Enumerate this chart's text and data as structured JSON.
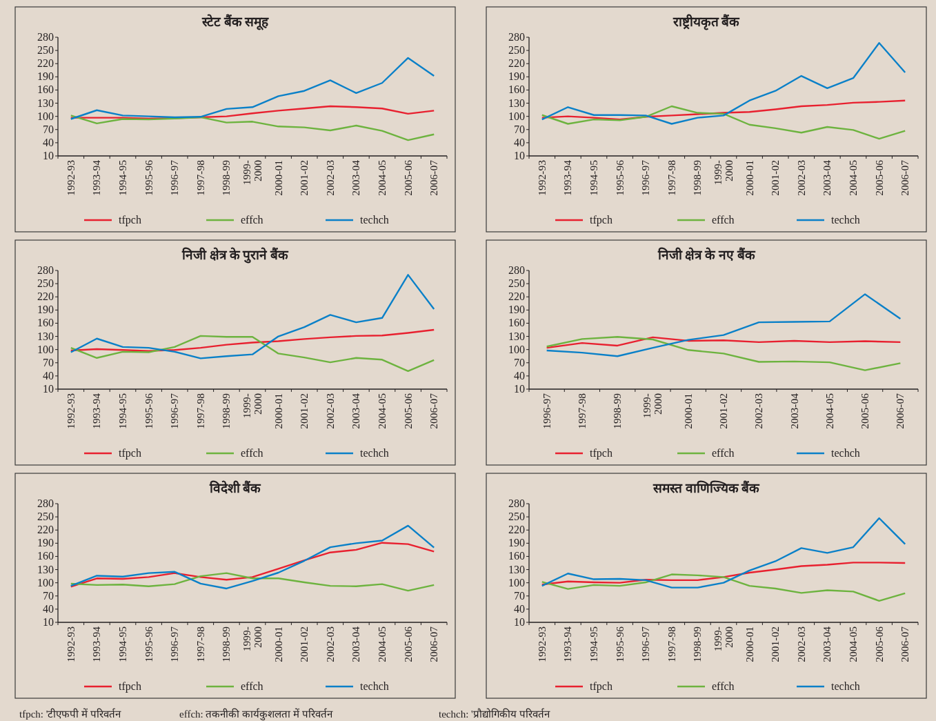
{
  "chart_data": [
    {
      "type": "line",
      "title": "स्टेट बैंक समूह",
      "categories": [
        "1992-93",
        "1993-94",
        "1994-95",
        "1995-96",
        "1996-97",
        "1997-98",
        "1998-99",
        "1999-2000",
        "2000-01",
        "2001-02",
        "2002-03",
        "2003-04",
        "2004-05",
        "2005-06",
        "2006-07"
      ],
      "ylim": [
        10,
        280
      ],
      "yticks": [
        10,
        40,
        70,
        100,
        130,
        160,
        190,
        220,
        250,
        280
      ],
      "legend": "bottom",
      "series": [
        {
          "name": "tfpch",
          "color": "#e8202f",
          "values": [
            97,
            97,
            97,
            95,
            96,
            98,
            100,
            107,
            113,
            118,
            123,
            121,
            118,
            106,
            113
          ]
        },
        {
          "name": "effch",
          "color": "#6db33f",
          "values": [
            102,
            84,
            94,
            93,
            95,
            98,
            86,
            88,
            77,
            75,
            68,
            79,
            67,
            46,
            59
          ]
        },
        {
          "name": "techch",
          "color": "#0a80c8",
          "values": [
            94,
            114,
            102,
            100,
            98,
            99,
            117,
            121,
            146,
            158,
            182,
            153,
            176,
            233,
            192
          ]
        }
      ]
    },
    {
      "type": "line",
      "title": "राष्ट्रीयकृत बैंक",
      "categories": [
        "1992-93",
        "1993-94",
        "1994-95",
        "1995-96",
        "1996-97",
        "1997-98",
        "1998-99",
        "1999-2000",
        "2000-01",
        "2001-02",
        "2002-03",
        "2003-04",
        "2004-05",
        "2005-06",
        "2006-07"
      ],
      "ylim": [
        10,
        280
      ],
      "yticks": [
        10,
        40,
        70,
        100,
        130,
        160,
        190,
        220,
        250,
        280
      ],
      "legend": "bottom",
      "series": [
        {
          "name": "tfpch",
          "color": "#e8202f",
          "values": [
            97,
            100,
            97,
            93,
            99,
            102,
            105,
            108,
            110,
            116,
            123,
            126,
            131,
            133,
            136
          ]
        },
        {
          "name": "effch",
          "color": "#6db33f",
          "values": [
            103,
            83,
            93,
            91,
            99,
            123,
            108,
            106,
            81,
            73,
            63,
            76,
            69,
            49,
            67
          ]
        },
        {
          "name": "techch",
          "color": "#0a80c8",
          "values": [
            93,
            121,
            103,
            103,
            102,
            83,
            97,
            102,
            136,
            158,
            192,
            164,
            187,
            267,
            200
          ]
        }
      ]
    },
    {
      "type": "line",
      "title": "निजी क्षेत्र के पुराने बैंक",
      "categories": [
        "1992-93",
        "1993-94",
        "1994-95",
        "1995-96",
        "1996-97",
        "1997-98",
        "1998-99",
        "1999-2000",
        "2000-01",
        "2001-02",
        "2002-03",
        "2003-04",
        "2004-05",
        "2005-06",
        "2006-07"
      ],
      "ylim": [
        10,
        280
      ],
      "yticks": [
        10,
        40,
        70,
        100,
        130,
        160,
        190,
        220,
        250,
        280
      ],
      "legend": "bottom",
      "series": [
        {
          "name": "tfpch",
          "color": "#e8202f",
          "values": [
            98,
            101,
            99,
            97,
            99,
            104,
            111,
            116,
            119,
            124,
            128,
            131,
            132,
            138,
            145
          ]
        },
        {
          "name": "effch",
          "color": "#6db33f",
          "values": [
            104,
            81,
            95,
            94,
            106,
            131,
            129,
            129,
            91,
            82,
            71,
            81,
            77,
            51,
            76
          ]
        },
        {
          "name": "techch",
          "color": "#0a80c8",
          "values": [
            94,
            125,
            106,
            104,
            95,
            80,
            85,
            89,
            130,
            151,
            179,
            162,
            172,
            270,
            192
          ]
        }
      ]
    },
    {
      "type": "line",
      "title": "निजी क्षेत्र के नए बैंक",
      "categories": [
        "1996-97",
        "1997-98",
        "1998-99",
        "1999-2000",
        "2000-01",
        "2001-02",
        "2002-03",
        "2003-04",
        "2004-05",
        "2005-06",
        "2006-07"
      ],
      "ylim": [
        10,
        280
      ],
      "yticks": [
        10,
        40,
        70,
        100,
        130,
        160,
        190,
        220,
        250,
        280
      ],
      "legend": "bottom",
      "series": [
        {
          "name": "tfpch",
          "color": "#e8202f",
          "values": [
            104,
            115,
            109,
            128,
            120,
            121,
            117,
            120,
            117,
            119,
            117
          ]
        },
        {
          "name": "effch",
          "color": "#6db33f",
          "values": [
            107,
            124,
            129,
            123,
            99,
            91,
            72,
            73,
            71,
            53,
            69
          ]
        },
        {
          "name": "techch",
          "color": "#0a80c8",
          "values": [
            98,
            93,
            85,
            104,
            122,
            133,
            162,
            163,
            164,
            226,
            170
          ]
        }
      ]
    },
    {
      "type": "line",
      "title": "विदेशी बैंक",
      "categories": [
        "1992-93",
        "1993-94",
        "1994-95",
        "1995-96",
        "1996-97",
        "1997-98",
        "1998-99",
        "1999-2000",
        "2000-01",
        "2001-02",
        "2002-03",
        "2003-04",
        "2004-05",
        "2005-06",
        "2006-07"
      ],
      "ylim": [
        10,
        280
      ],
      "yticks": [
        10,
        40,
        70,
        100,
        130,
        160,
        190,
        220,
        250,
        280
      ],
      "legend": "bottom",
      "series": [
        {
          "name": "tfpch",
          "color": "#e8202f",
          "values": [
            91,
            110,
            109,
            113,
            122,
            113,
            107,
            113,
            132,
            151,
            169,
            175,
            191,
            188,
            171
          ]
        },
        {
          "name": "effch",
          "color": "#6db33f",
          "values": [
            98,
            95,
            96,
            92,
            97,
            115,
            122,
            110,
            110,
            101,
            93,
            92,
            97,
            82,
            95
          ]
        },
        {
          "name": "techch",
          "color": "#0a80c8",
          "values": [
            93,
            116,
            114,
            122,
            125,
            98,
            87,
            104,
            123,
            150,
            181,
            190,
            196,
            230,
            180
          ]
        }
      ]
    },
    {
      "type": "line",
      "title": "समस्त वाणिज्यिक बैंक",
      "categories": [
        "1992-93",
        "1993-94",
        "1994-95",
        "1995-96",
        "1996-97",
        "1997-98",
        "1998-99",
        "1999-2000",
        "2000-01",
        "2001-02",
        "2002-03",
        "2003-04",
        "2004-05",
        "2005-06",
        "2006-07"
      ],
      "ylim": [
        10,
        280
      ],
      "yticks": [
        10,
        40,
        70,
        100,
        130,
        160,
        190,
        220,
        250,
        280
      ],
      "legend": "bottom",
      "series": [
        {
          "name": "tfpch",
          "color": "#e8202f",
          "values": [
            96,
            103,
            101,
            100,
            107,
            106,
            106,
            113,
            123,
            130,
            138,
            141,
            146,
            146,
            145
          ]
        },
        {
          "name": "effch",
          "color": "#6db33f",
          "values": [
            102,
            86,
            95,
            93,
            101,
            119,
            117,
            113,
            93,
            87,
            77,
            83,
            80,
            59,
            76
          ]
        },
        {
          "name": "techch",
          "color": "#0a80c8",
          "values": [
            93,
            121,
            108,
            109,
            106,
            89,
            89,
            100,
            128,
            149,
            179,
            168,
            181,
            247,
            188
          ]
        }
      ]
    },
    {
      "type": "other",
      "annotations": [
        "tfpch: 'टीएफपी में परिवर्तन",
        "effch: तकनीकी कार्यकुशलता में परिवर्तन",
        "techch: 'प्रौद्योगिकीय परिवर्तन"
      ]
    }
  ]
}
